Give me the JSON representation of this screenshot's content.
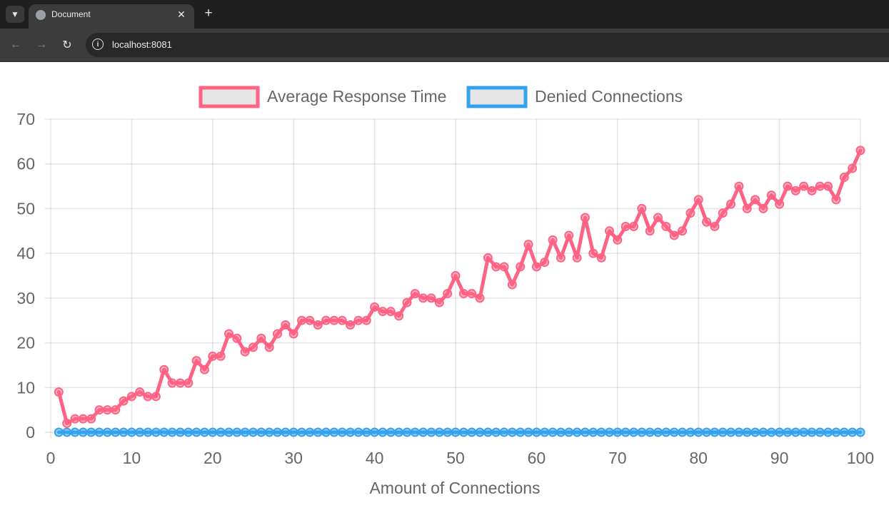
{
  "browser": {
    "tab_title": "Document",
    "url": "localhost:8081",
    "tab_search_icon": "chevron-down-icon",
    "close_icon": "close-icon",
    "new_tab_icon": "plus-icon",
    "back_icon": "arrow-left-icon",
    "forward_icon": "arrow-right-icon",
    "reload_icon": "reload-icon",
    "info_icon": "info-icon"
  },
  "chart_data": {
    "type": "line",
    "xlabel": "Amount of Connections",
    "ylabel": "",
    "xlim": [
      0,
      100
    ],
    "ylim": [
      0,
      70
    ],
    "xticks": [
      0,
      10,
      20,
      30,
      40,
      50,
      60,
      70,
      80,
      90,
      100
    ],
    "yticks": [
      0,
      10,
      20,
      30,
      40,
      50,
      60,
      70
    ],
    "grid": true,
    "legend_position": "top",
    "x": [
      1,
      2,
      3,
      4,
      5,
      6,
      7,
      8,
      9,
      10,
      11,
      12,
      13,
      14,
      15,
      16,
      17,
      18,
      19,
      20,
      21,
      22,
      23,
      24,
      25,
      26,
      27,
      28,
      29,
      30,
      31,
      32,
      33,
      34,
      35,
      36,
      37,
      38,
      39,
      40,
      41,
      42,
      43,
      44,
      45,
      46,
      47,
      48,
      49,
      50,
      51,
      52,
      53,
      54,
      55,
      56,
      57,
      58,
      59,
      60,
      61,
      62,
      63,
      64,
      65,
      66,
      67,
      68,
      69,
      70,
      71,
      72,
      73,
      74,
      75,
      76,
      77,
      78,
      79,
      80,
      81,
      82,
      83,
      84,
      85,
      86,
      87,
      88,
      89,
      90,
      91,
      92,
      93,
      94,
      95,
      96,
      97,
      98,
      99,
      100
    ],
    "series": [
      {
        "name": "Average Response Time",
        "color": "#ff6384",
        "values": [
          9,
          2,
          3,
          3,
          3,
          5,
          5,
          5,
          7,
          8,
          9,
          8,
          8,
          14,
          11,
          11,
          11,
          16,
          14,
          17,
          17,
          22,
          21,
          18,
          19,
          21,
          19,
          22,
          24,
          22,
          25,
          25,
          24,
          25,
          25,
          25,
          24,
          25,
          25,
          28,
          27,
          27,
          26,
          29,
          31,
          30,
          30,
          29,
          31,
          35,
          31,
          31,
          30,
          39,
          37,
          37,
          33,
          37,
          42,
          37,
          38,
          43,
          39,
          44,
          39,
          48,
          40,
          39,
          45,
          43,
          46,
          46,
          50,
          45,
          48,
          46,
          44,
          45,
          49,
          52,
          47,
          46,
          49,
          51,
          55,
          50,
          52,
          50,
          53,
          51,
          55,
          54,
          55,
          54,
          55,
          55,
          52,
          57,
          59,
          63
        ]
      },
      {
        "name": "Denied Connections",
        "color": "#36a2eb",
        "values": [
          0,
          0,
          0,
          0,
          0,
          0,
          0,
          0,
          0,
          0,
          0,
          0,
          0,
          0,
          0,
          0,
          0,
          0,
          0,
          0,
          0,
          0,
          0,
          0,
          0,
          0,
          0,
          0,
          0,
          0,
          0,
          0,
          0,
          0,
          0,
          0,
          0,
          0,
          0,
          0,
          0,
          0,
          0,
          0,
          0,
          0,
          0,
          0,
          0,
          0,
          0,
          0,
          0,
          0,
          0,
          0,
          0,
          0,
          0,
          0,
          0,
          0,
          0,
          0,
          0,
          0,
          0,
          0,
          0,
          0,
          0,
          0,
          0,
          0,
          0,
          0,
          0,
          0,
          0,
          0,
          0,
          0,
          0,
          0,
          0,
          0,
          0,
          0,
          0,
          0,
          0,
          0,
          0,
          0,
          0,
          0,
          0,
          0,
          0,
          0
        ]
      }
    ]
  }
}
